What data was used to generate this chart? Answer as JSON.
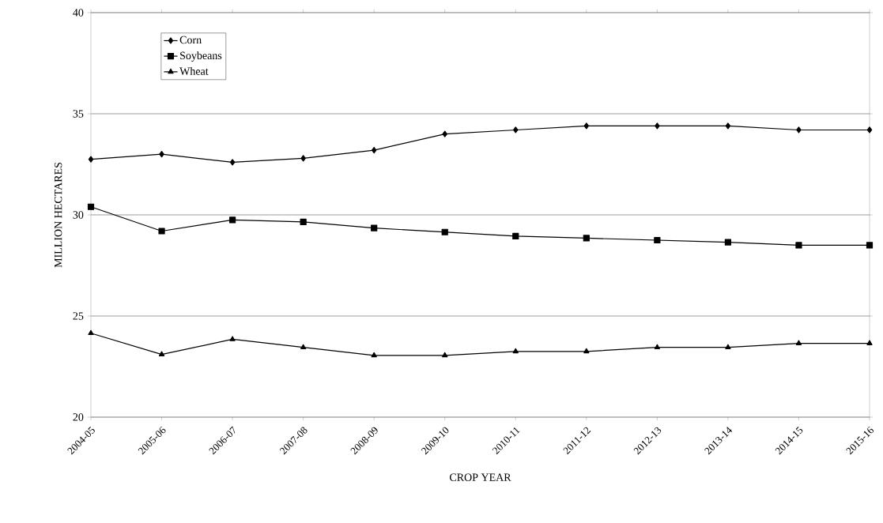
{
  "chart_data": {
    "type": "line",
    "xlabel": "CROP YEAR",
    "ylabel": "MILLION HECTARES",
    "categories": [
      "2004-05",
      "2005-06",
      "2006-07",
      "2007-08",
      "2008-09",
      "2009-10",
      "2010-11",
      "2011-12",
      "2012-13",
      "2013-14",
      "2014-15",
      "2015-16"
    ],
    "series": [
      {
        "name": "Corn",
        "color": "#000000",
        "marker": "diamond",
        "values": [
          32.75,
          33.0,
          32.6,
          32.8,
          33.2,
          34.0,
          34.2,
          34.4,
          34.4,
          34.4,
          34.2,
          34.2
        ]
      },
      {
        "name": "Soybeans",
        "color": "#000000",
        "marker": "square",
        "values": [
          30.4,
          29.2,
          29.75,
          29.65,
          29.35,
          29.15,
          28.95,
          28.85,
          28.75,
          28.65,
          28.5,
          28.5
        ]
      },
      {
        "name": "Wheat",
        "color": "#000000",
        "marker": "triangle",
        "values": [
          24.15,
          23.1,
          23.85,
          23.45,
          23.05,
          23.05,
          23.25,
          23.25,
          23.45,
          23.45,
          23.65,
          23.65
        ]
      }
    ],
    "ylim": [
      20,
      40
    ],
    "yticks": [
      20,
      25,
      30,
      35,
      40
    ],
    "grid": "y",
    "legend": "top left",
    "line_style": "solid"
  }
}
